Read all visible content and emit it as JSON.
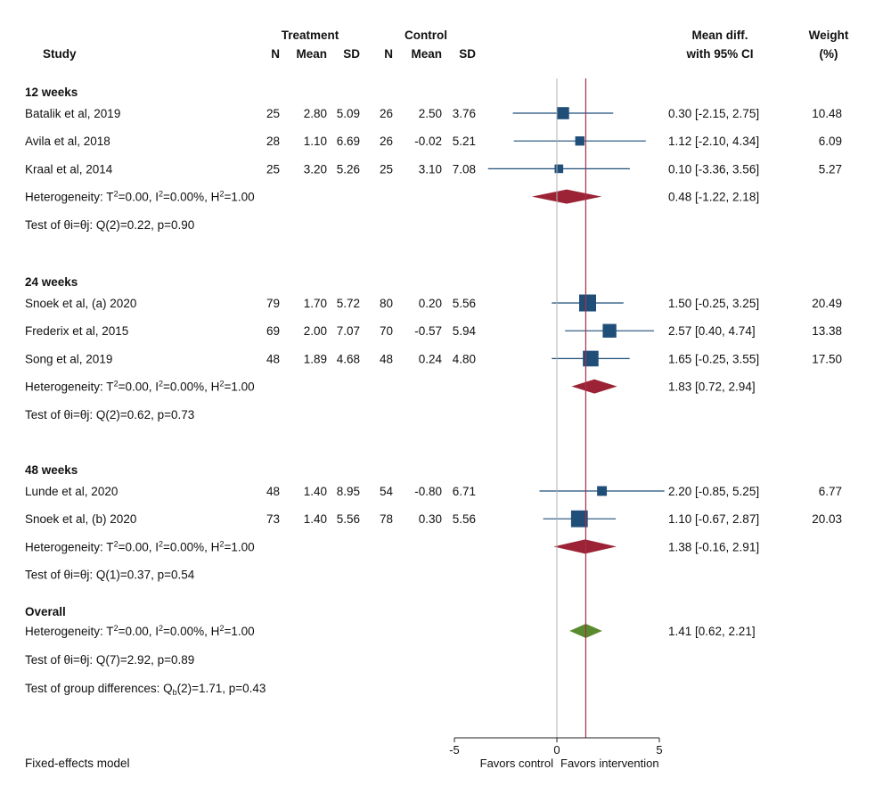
{
  "headers": {
    "study": "Study",
    "treatment": "Treatment",
    "control": "Control",
    "n": "N",
    "mean": "Mean",
    "sd": "SD",
    "effect_line1": "Mean diff.",
    "effect_line2": "with 95% CI",
    "weight_line1": "Weight",
    "weight_line2": "(%)"
  },
  "colors": {
    "study_marker": "#1f4e79",
    "subgroup_diamond": "#9b2335",
    "overall_diamond": "#5a8a2e",
    "null_line": "#b0b0b0",
    "overall_line": "#a5304a"
  },
  "chart_data": {
    "type": "forest",
    "model": "Fixed-effects model",
    "xaxis": {
      "min": -5,
      "max": 5,
      "ticks": [
        -5,
        0,
        5
      ],
      "tick_labels": [
        "-5",
        "0",
        "5"
      ],
      "left_label": "Favors control",
      "right_label": "Favors intervention"
    },
    "null_value": 0,
    "groups": [
      {
        "name": "12 weeks",
        "studies": [
          {
            "study": "Batalik et al, 2019",
            "t_n": "25",
            "t_mean": "2.80",
            "t_sd": "5.09",
            "c_n": "26",
            "c_mean": "2.50",
            "c_sd": "3.76",
            "md": 0.3,
            "lo": -2.15,
            "hi": 2.75,
            "ci_text": "0.30 [-2.15, 2.75]",
            "weight": 10.48,
            "weight_text": "10.48"
          },
          {
            "study": "Avila et al, 2018",
            "t_n": "28",
            "t_mean": "1.10",
            "t_sd": "6.69",
            "c_n": "26",
            "c_mean": "-0.02",
            "c_sd": "5.21",
            "md": 1.12,
            "lo": -2.1,
            "hi": 4.34,
            "ci_text": "1.12 [-2.10, 4.34]",
            "weight": 6.09,
            "weight_text": "6.09"
          },
          {
            "study": "Kraal et al, 2014",
            "t_n": "25",
            "t_mean": "3.20",
            "t_sd": "5.26",
            "c_n": "25",
            "c_mean": "3.10",
            "c_sd": "7.08",
            "md": 0.1,
            "lo": -3.36,
            "hi": 3.56,
            "ci_text": "0.10 [-3.36, 3.56]",
            "weight": 5.27,
            "weight_text": "5.27"
          }
        ],
        "het_T2": "0.00",
        "het_I2": "0.00%",
        "het_H2": "1.00",
        "summary": {
          "md": 0.48,
          "lo": -1.22,
          "hi": 2.18,
          "ci_text": "0.48 [-1.22, 2.18]"
        },
        "test_q": "Q(2)=0.22, p=0.90"
      },
      {
        "name": "24 weeks",
        "studies": [
          {
            "study": "Snoek et al, (a) 2020",
            "t_n": "79",
            "t_mean": "1.70",
            "t_sd": "5.72",
            "c_n": "80",
            "c_mean": "0.20",
            "c_sd": "5.56",
            "md": 1.5,
            "lo": -0.25,
            "hi": 3.25,
            "ci_text": "1.50 [-0.25, 3.25]",
            "weight": 20.49,
            "weight_text": "20.49"
          },
          {
            "study": "Frederix et al, 2015",
            "t_n": "69",
            "t_mean": "2.00",
            "t_sd": "7.07",
            "c_n": "70",
            "c_mean": "-0.57",
            "c_sd": "5.94",
            "md": 2.57,
            "lo": 0.4,
            "hi": 4.74,
            "ci_text": "2.57 [0.40, 4.74]",
            "weight": 13.38,
            "weight_text": "13.38"
          },
          {
            "study": "Song et al, 2019",
            "t_n": "48",
            "t_mean": "1.89",
            "t_sd": "4.68",
            "c_n": "48",
            "c_mean": "0.24",
            "c_sd": "4.80",
            "md": 1.65,
            "lo": -0.25,
            "hi": 3.55,
            "ci_text": "1.65 [-0.25, 3.55]",
            "weight": 17.5,
            "weight_text": "17.50"
          }
        ],
        "het_T2": "0.00",
        "het_I2": "0.00%",
        "het_H2": "1.00",
        "summary": {
          "md": 1.83,
          "lo": 0.72,
          "hi": 2.94,
          "ci_text": "1.83 [0.72, 2.94]"
        },
        "test_q": "Q(2)=0.62, p=0.73"
      },
      {
        "name": "48 weeks",
        "studies": [
          {
            "study": "Lunde et al, 2020",
            "t_n": "48",
            "t_mean": "1.40",
            "t_sd": "8.95",
            "c_n": "54",
            "c_mean": "-0.80",
            "c_sd": "6.71",
            "md": 2.2,
            "lo": -0.85,
            "hi": 5.25,
            "ci_text": "2.20 [-0.85, 5.25]",
            "weight": 6.77,
            "weight_text": "6.77"
          },
          {
            "study": "Snoek et al, (b) 2020",
            "t_n": "73",
            "t_mean": "1.40",
            "t_sd": "5.56",
            "c_n": "78",
            "c_mean": "0.30",
            "c_sd": "5.56",
            "md": 1.1,
            "lo": -0.67,
            "hi": 2.87,
            "ci_text": "1.10 [-0.67, 2.87]",
            "weight": 20.03,
            "weight_text": "20.03"
          }
        ],
        "het_T2": "0.00",
        "het_I2": "0.00%",
        "het_H2": "1.00",
        "summary": {
          "md": 1.38,
          "lo": -0.16,
          "hi": 2.91,
          "ci_text": "1.38 [-0.16, 2.91]"
        },
        "test_q": "Q(1)=0.37, p=0.54"
      }
    ],
    "overall": {
      "name": "Overall",
      "het_T2": "0.00",
      "het_I2": "0.00%",
      "het_H2": "1.00",
      "md": 1.41,
      "lo": 0.62,
      "hi": 2.21,
      "ci_text": "1.41 [0.62, 2.21]",
      "test_q": "Q(7)=2.92, p=0.89",
      "group_diff": "(2)=1.71, p=0.43"
    }
  }
}
